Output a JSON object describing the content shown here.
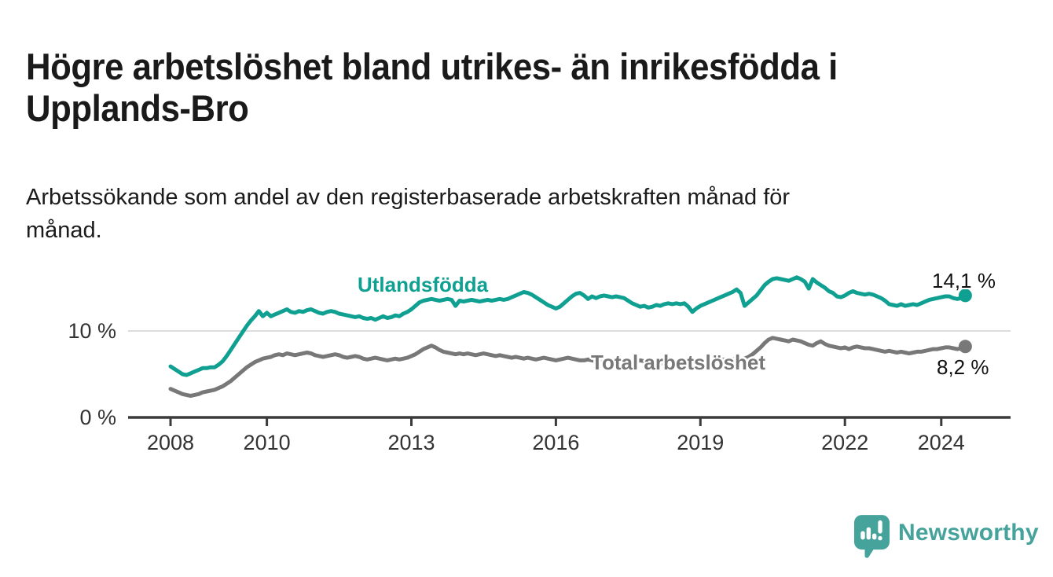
{
  "header": {
    "title_lines": [
      "Högre arbetslöshet bland utrikes- än inrikesfödda i",
      "Upplands-Bro"
    ],
    "subtitle_lines": [
      "Arbetssökande som andel av den registerbaserade arbetskraften månad för",
      "månad."
    ]
  },
  "chart_data": {
    "type": "line",
    "unit": "%",
    "x_start": 2008.0,
    "x_step": 0.0833333,
    "x_axis": {
      "tick_years": [
        2008,
        2010,
        2013,
        2016,
        2019,
        2022,
        2024
      ],
      "tick_labels": [
        "2008",
        "2010",
        "2013",
        "2016",
        "2019",
        "2022",
        "2024"
      ]
    },
    "y_axis": {
      "ticks": [
        {
          "value": 10,
          "label": "10 %"
        },
        {
          "value": 0,
          "label": "0 %"
        }
      ],
      "range": [
        0,
        18
      ],
      "grid": true
    },
    "series": [
      {
        "name": "Utlandsfödda",
        "slug": "utlandsfodda",
        "color": "#10A092",
        "end_value": 14.1,
        "end_label": "14,1 %",
        "values": [
          5.9,
          5.6,
          5.3,
          5.0,
          4.9,
          5.1,
          5.3,
          5.5,
          5.7,
          5.7,
          5.8,
          5.8,
          6.1,
          6.5,
          7.1,
          7.8,
          8.5,
          9.2,
          9.9,
          10.6,
          11.2,
          11.7,
          12.3,
          11.7,
          12.1,
          11.7,
          11.9,
          12.1,
          12.3,
          12.5,
          12.2,
          12.1,
          12.3,
          12.2,
          12.4,
          12.5,
          12.3,
          12.1,
          12.0,
          12.2,
          12.3,
          12.2,
          12.0,
          11.9,
          11.8,
          11.7,
          11.6,
          11.7,
          11.5,
          11.4,
          11.5,
          11.3,
          11.5,
          11.7,
          11.5,
          11.6,
          11.8,
          11.7,
          12.0,
          12.2,
          12.5,
          12.9,
          13.3,
          13.5,
          13.6,
          13.7,
          13.6,
          13.5,
          13.6,
          13.7,
          13.6,
          12.9,
          13.5,
          13.4,
          13.5,
          13.6,
          13.5,
          13.4,
          13.5,
          13.6,
          13.5,
          13.6,
          13.7,
          13.6,
          13.7,
          13.9,
          14.1,
          14.3,
          14.5,
          14.4,
          14.2,
          13.9,
          13.6,
          13.3,
          13.0,
          12.8,
          12.6,
          12.8,
          13.2,
          13.6,
          14.0,
          14.3,
          14.4,
          14.1,
          13.7,
          14.0,
          13.8,
          14.0,
          14.1,
          14.0,
          13.9,
          14.0,
          13.9,
          13.8,
          13.5,
          13.2,
          13.0,
          12.8,
          12.9,
          12.7,
          12.8,
          13.0,
          12.9,
          13.1,
          13.2,
          13.1,
          13.2,
          13.1,
          13.2,
          12.8,
          12.2,
          12.6,
          12.9,
          13.1,
          13.3,
          13.5,
          13.7,
          13.9,
          14.1,
          14.3,
          14.5,
          14.8,
          14.4,
          12.9,
          13.3,
          13.7,
          14.1,
          14.7,
          15.3,
          15.7,
          16.0,
          16.1,
          16.0,
          15.9,
          15.8,
          16.0,
          16.2,
          16.0,
          15.7,
          14.9,
          16.0,
          15.6,
          15.3,
          15.0,
          14.6,
          14.4,
          14.0,
          13.9,
          14.1,
          14.4,
          14.6,
          14.4,
          14.3,
          14.2,
          14.3,
          14.2,
          14.0,
          13.8,
          13.5,
          13.1,
          13.0,
          12.9,
          13.1,
          12.9,
          13.0,
          13.1,
          13.0,
          13.2,
          13.4,
          13.6,
          13.7,
          13.8,
          13.9,
          14.0,
          14.0,
          13.8,
          13.7,
          13.8,
          14.1
        ]
      },
      {
        "name": "Total arbetslöshet",
        "slug": "total-arbetsloshet",
        "color": "#787878",
        "end_value": 8.2,
        "end_label": "8,2 %",
        "values": [
          3.3,
          3.1,
          2.9,
          2.7,
          2.6,
          2.5,
          2.6,
          2.7,
          2.9,
          3.0,
          3.1,
          3.2,
          3.4,
          3.6,
          3.9,
          4.2,
          4.6,
          5.0,
          5.4,
          5.8,
          6.1,
          6.4,
          6.6,
          6.8,
          6.9,
          7.0,
          7.2,
          7.3,
          7.2,
          7.4,
          7.3,
          7.2,
          7.3,
          7.4,
          7.5,
          7.4,
          7.2,
          7.1,
          7.0,
          7.1,
          7.2,
          7.3,
          7.2,
          7.0,
          6.9,
          7.0,
          7.1,
          7.0,
          6.8,
          6.7,
          6.8,
          6.9,
          6.8,
          6.7,
          6.6,
          6.7,
          6.8,
          6.7,
          6.8,
          6.9,
          7.1,
          7.3,
          7.6,
          7.9,
          8.1,
          8.3,
          8.1,
          7.8,
          7.6,
          7.5,
          7.4,
          7.3,
          7.4,
          7.3,
          7.4,
          7.3,
          7.2,
          7.3,
          7.4,
          7.3,
          7.2,
          7.1,
          7.2,
          7.1,
          7.0,
          6.9,
          7.0,
          6.9,
          6.8,
          6.9,
          6.8,
          6.7,
          6.8,
          6.9,
          6.8,
          6.7,
          6.6,
          6.7,
          6.8,
          6.9,
          6.8,
          6.7,
          6.6,
          6.6,
          6.7,
          6.6,
          6.5,
          6.6,
          6.5,
          6.6,
          6.7,
          6.6,
          6.5,
          6.6,
          6.5,
          6.4,
          6.5,
          6.6,
          6.5,
          6.4,
          6.3,
          6.4,
          6.3,
          6.2,
          6.3,
          6.4,
          6.3,
          6.2,
          6.3,
          6.2,
          6.3,
          6.4,
          6.5,
          6.4,
          6.5,
          6.6,
          6.5,
          6.6,
          6.7,
          6.6,
          6.7,
          6.8,
          6.7,
          6.8,
          7.0,
          7.3,
          7.7,
          8.1,
          8.6,
          9.0,
          9.2,
          9.1,
          9.0,
          8.9,
          8.8,
          9.0,
          8.9,
          8.8,
          8.6,
          8.4,
          8.3,
          8.6,
          8.8,
          8.5,
          8.3,
          8.2,
          8.1,
          8.0,
          8.1,
          7.9,
          8.1,
          8.2,
          8.1,
          8.0,
          8.0,
          7.9,
          7.8,
          7.7,
          7.6,
          7.7,
          7.6,
          7.5,
          7.6,
          7.5,
          7.4,
          7.5,
          7.6,
          7.6,
          7.7,
          7.8,
          7.9,
          7.9,
          8.0,
          8.1,
          8.1,
          8.0,
          7.9,
          8.0,
          8.2
        ]
      }
    ],
    "style": {
      "grid_color": "#dcdcdc",
      "axis_color": "#3b3b3b",
      "tick_label_color": "#333333"
    }
  },
  "footer": {
    "logo_text": "Newsworthy",
    "logo_color": "#46A39B"
  }
}
